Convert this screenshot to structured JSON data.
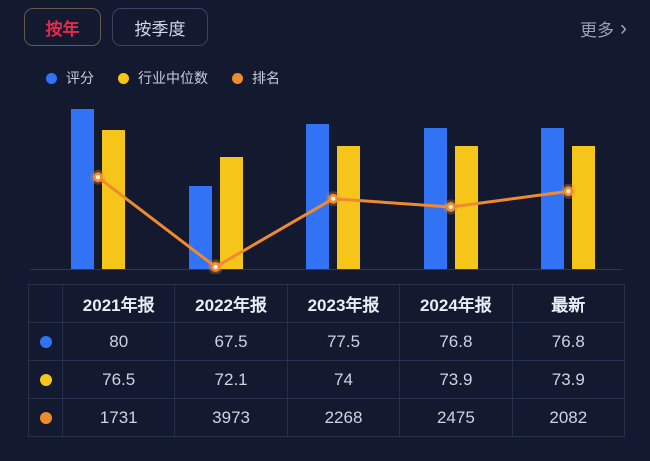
{
  "tabs": {
    "by_year": "按年",
    "by_quarter": "按季度"
  },
  "more": {
    "label": "更多",
    "chevron": "›"
  },
  "legend": [
    {
      "label": "评分",
      "color": "#3273f5"
    },
    {
      "label": "行业中位数",
      "color": "#f6c51a"
    },
    {
      "label": "排名",
      "color": "#f08a2e"
    }
  ],
  "chart_data": {
    "type": "bar",
    "subtype": "grouped bars with overlaid line",
    "categories": [
      "2021年报",
      "2022年报",
      "2023年报",
      "2024年报",
      "最新"
    ],
    "series": [
      {
        "name": "评分",
        "type": "bar",
        "color": "#3273f5",
        "values": [
          80,
          67.5,
          77.5,
          76.8,
          76.8
        ]
      },
      {
        "name": "行业中位数",
        "type": "bar",
        "color": "#f6c51a",
        "values": [
          76.5,
          72.1,
          74,
          73.9,
          73.9
        ]
      },
      {
        "name": "排名",
        "type": "line",
        "color": "#f08a2e",
        "point_core_color": "#fff1d8",
        "values": [
          1731,
          3973,
          2268,
          2475,
          2082
        ]
      }
    ],
    "score_axis": {
      "min": 54,
      "max": 83,
      "visible": false
    },
    "rank_axis": {
      "min": 0,
      "max": 4000,
      "inverted": true,
      "visible": false
    },
    "grid": false,
    "legend_position": "top-left"
  },
  "table": {
    "columns": [
      "2021年报",
      "2022年报",
      "2023年报",
      "2024年报",
      "最新"
    ],
    "rows": [
      {
        "series": "评分",
        "color": "#3273f5",
        "values": [
          "80",
          "67.5",
          "77.5",
          "76.8",
          "76.8"
        ]
      },
      {
        "series": "行业中位数",
        "color": "#f6c51a",
        "values": [
          "76.5",
          "72.1",
          "74",
          "73.9",
          "73.9"
        ]
      },
      {
        "series": "排名",
        "color": "#f08a2e",
        "values": [
          "1731",
          "3973",
          "2268",
          "2475",
          "2082"
        ]
      }
    ]
  },
  "colors": {
    "background": "#131a30",
    "active_tab_text": "#e8294d",
    "bar_blue": "#3273f5",
    "bar_yellow": "#f6c51a",
    "line_orange": "#f08a2e"
  }
}
